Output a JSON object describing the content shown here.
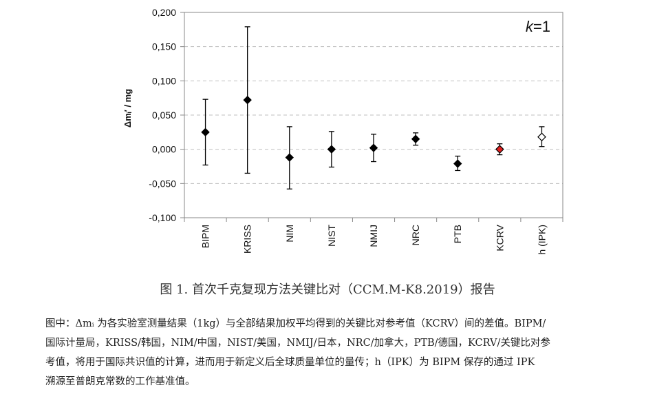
{
  "chart_data": {
    "type": "scatter",
    "annotation": "k=1",
    "annotation_var": "k",
    "annotation_rest": "=1",
    "ylabel": "Δmᵢ′ / mg",
    "ylim": [
      -0.1,
      0.2
    ],
    "yticks": [
      0.2,
      0.15,
      0.1,
      0.05,
      0.0,
      -0.05,
      -0.1
    ],
    "ytick_labels": [
      "0,200",
      "0,150",
      "0,100",
      "0,050",
      "0,000",
      "-0,050",
      "-0,100"
    ],
    "grid": "horizontal dashed",
    "categories": [
      "BIPM",
      "KRISS",
      "NIM",
      "NIST",
      "NMIJ",
      "NRC",
      "PTB",
      "KCRV",
      "h (IPK)"
    ],
    "values": [
      0.025,
      0.072,
      -0.012,
      0.0,
      0.002,
      0.015,
      -0.021,
      0.0,
      0.018
    ],
    "error_upper": [
      0.073,
      0.179,
      0.033,
      0.026,
      0.022,
      0.024,
      -0.01,
      0.008,
      0.033
    ],
    "error_lower": [
      -0.023,
      -0.035,
      -0.058,
      -0.026,
      -0.018,
      0.006,
      -0.031,
      -0.008,
      0.004
    ],
    "marker_styles": [
      "filled",
      "filled",
      "filled",
      "filled",
      "filled",
      "filled",
      "filled",
      "red",
      "open"
    ],
    "colors": {
      "filled": "#000000",
      "red": "#e02020",
      "open": "#ffffff",
      "grid": "#bfbfbf",
      "axis": "#888888"
    }
  },
  "caption": "图 1. 首次千克复现方法关键比对（CCM.M-K8.2019）报告",
  "note_lines": [
    "图中：Δmᵢ 为各实验室测量结果（1kg）与全部结果加权平均得到的关键比对参考值（KCRV）间的差值。BIPM/",
    "国际计量局，KRISS/韩国，NIM/中国，NIST/美国，NMIJ/日本，NRC/加拿大，PTB/德国，KCRV/关键比对参",
    "考值，将用于国际共识值的计算，进而用于新定义后全球质量单位的量传；h（IPK）为 BIPM 保存的通过 IPK",
    "溯源至普朗克常数的工作基准值。"
  ]
}
